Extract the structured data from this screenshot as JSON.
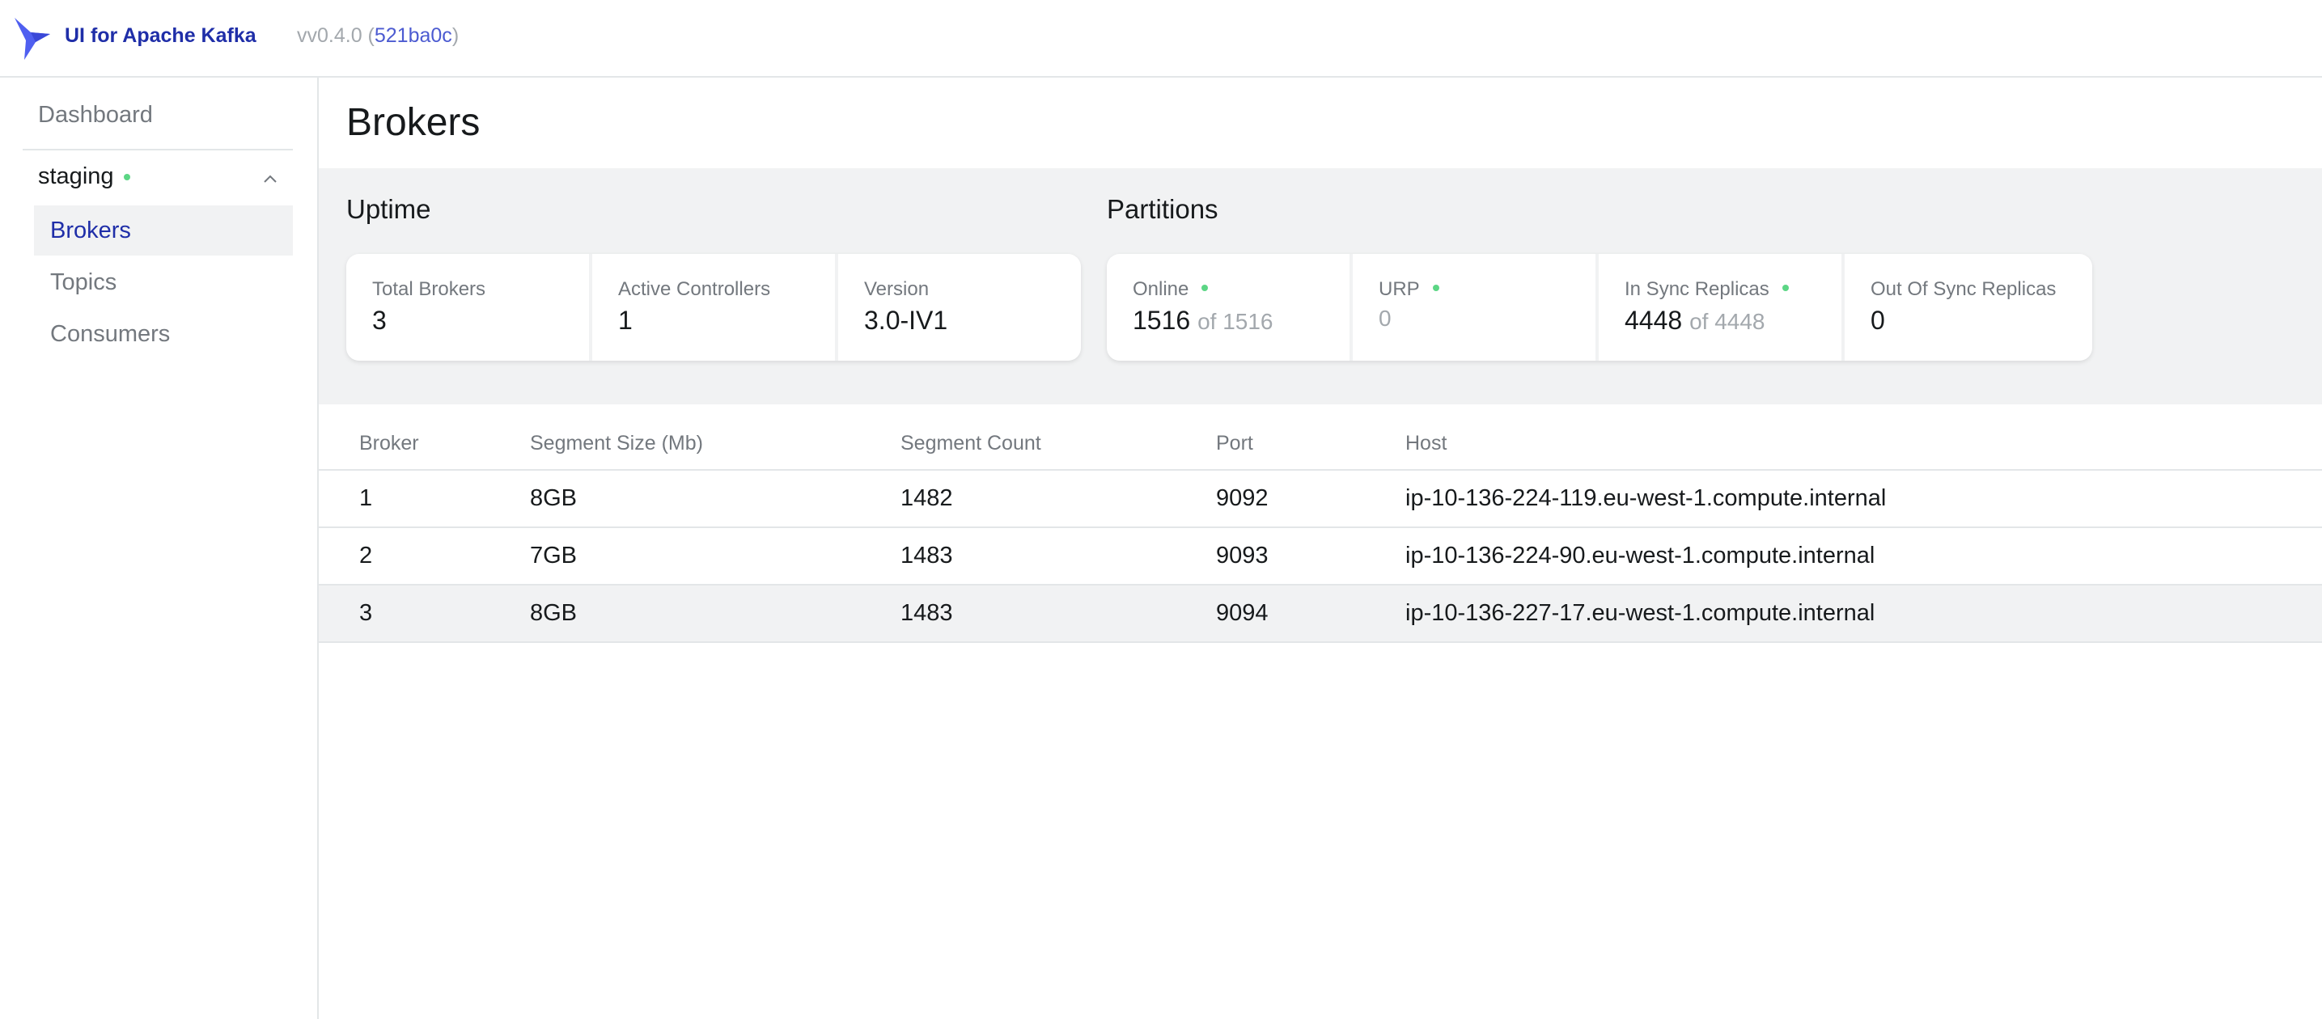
{
  "header": {
    "app_title": "UI for Apache Kafka",
    "version_prefix": "vv0.4.0 (",
    "commit": "521ba0c",
    "version_suffix": ")",
    "brand_color": "#1f2ea8"
  },
  "sidebar": {
    "dashboard": "Dashboard",
    "cluster": {
      "name": "staging",
      "status_color": "#5cd685"
    },
    "items": [
      {
        "label": "Brokers",
        "active": true
      },
      {
        "label": "Topics",
        "active": false
      },
      {
        "label": "Consumers",
        "active": false
      }
    ]
  },
  "page": {
    "title": "Brokers"
  },
  "uptime": {
    "title": "Uptime",
    "cards": [
      {
        "label": "Total Brokers",
        "value": "3"
      },
      {
        "label": "Active Controllers",
        "value": "1"
      },
      {
        "label": "Version",
        "value": "3.0-IV1"
      }
    ]
  },
  "partitions": {
    "title": "Partitions",
    "cards": [
      {
        "label": "Online",
        "value": "1516",
        "of": "of 1516"
      },
      {
        "label": "URP",
        "value": "0"
      },
      {
        "label": "In Sync Replicas",
        "value": "4448",
        "of": "of 4448"
      },
      {
        "label": "Out Of Sync Replicas",
        "value": "0"
      }
    ]
  },
  "table": {
    "headers": [
      "Broker",
      "Segment Size (Mb)",
      "Segment Count",
      "Port",
      "Host"
    ],
    "rows": [
      [
        "1",
        "8GB",
        "1482",
        "9092",
        "ip-10-136-224-119.eu-west-1.compute.internal"
      ],
      [
        "2",
        "7GB",
        "1483",
        "9093",
        "ip-10-136-224-90.eu-west-1.compute.internal"
      ],
      [
        "3",
        "8GB",
        "1483",
        "9094",
        "ip-10-136-227-17.eu-west-1.compute.internal"
      ]
    ]
  }
}
